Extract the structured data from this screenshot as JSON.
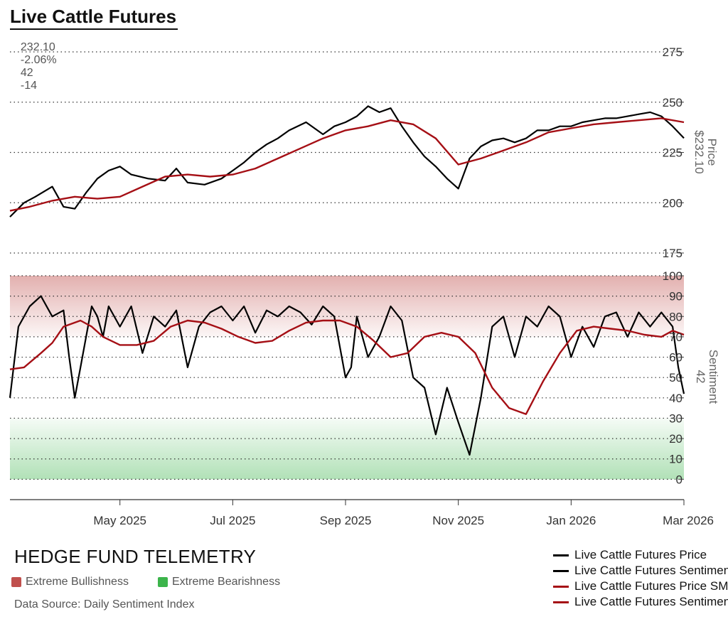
{
  "header": {
    "title": "Live Cattle Futures",
    "stats": [
      "232.10",
      "-2.06%",
      "42",
      "-14"
    ]
  },
  "footer": {
    "brand": "HEDGE FUND TELEMETRY",
    "zones": [
      {
        "label": "Extreme Bullishness",
        "color": "#c0504d"
      },
      {
        "label": "Extreme Bearishness",
        "color": "#3cb44b"
      }
    ],
    "source": "Data Source: Daily Sentiment Index"
  },
  "legend": [
    {
      "label": "Live Cattle Futures Price",
      "color": "#000000"
    },
    {
      "label": "Live Cattle Futures Sentiment",
      "color": "#000000"
    },
    {
      "label": "Live Cattle Futures Price SMA",
      "color": "#a50f15"
    },
    {
      "label": "Live Cattle Futures Sentiment SMA",
      "color": "#a50f15"
    }
  ],
  "chart_data": {
    "type": "line",
    "title": "Live Cattle Futures",
    "x_tick_labels": [
      "May 2025",
      "Jul 2025",
      "Sep 2025",
      "Nov 2025",
      "Jan 2026",
      "Mar 2026"
    ],
    "x_tick_months": [
      1,
      3,
      5,
      7,
      9,
      11
    ],
    "x_range_months": [
      -0.95,
      11.0
    ],
    "panels": [
      {
        "name": "price",
        "ylabel": "Price",
        "value_label": "$232.10",
        "ylim": [
          175,
          275
        ],
        "yticks": [
          175,
          200,
          225,
          250,
          275
        ],
        "series": [
          {
            "name": "Live Cattle Futures Price",
            "color": "#000000",
            "x": [
              -0.95,
              -0.7,
              -0.5,
              -0.2,
              0.0,
              0.2,
              0.4,
              0.6,
              0.8,
              1.0,
              1.2,
              1.5,
              1.8,
              2.0,
              2.2,
              2.5,
              2.8,
              3.0,
              3.2,
              3.4,
              3.6,
              3.8,
              4.0,
              4.3,
              4.6,
              4.8,
              5.0,
              5.2,
              5.4,
              5.6,
              5.8,
              6.0,
              6.2,
              6.4,
              6.6,
              6.8,
              7.0,
              7.2,
              7.4,
              7.6,
              7.8,
              8.0,
              8.2,
              8.4,
              8.6,
              8.8,
              9.0,
              9.2,
              9.4,
              9.6,
              9.8,
              10.0,
              10.2,
              10.4,
              10.6,
              10.8,
              11.0
            ],
            "y": [
              193,
              200,
              203,
              208,
              198,
              197,
              205,
              212,
              216,
              218,
              214,
              212,
              211,
              217,
              210,
              209,
              212,
              216,
              220,
              225,
              229,
              232,
              236,
              240,
              234,
              238,
              240,
              243,
              248,
              245,
              247,
              238,
              230,
              223,
              218,
              212,
              207,
              222,
              228,
              231,
              232,
              230,
              232,
              236,
              236,
              238,
              238,
              240,
              241,
              242,
              242,
              243,
              244,
              245,
              243,
              238,
              232.1
            ]
          },
          {
            "name": "Live Cattle Futures Price SMA",
            "color": "#a50f15",
            "x": [
              -0.95,
              -0.6,
              -0.2,
              0.2,
              0.6,
              1.0,
              1.4,
              1.8,
              2.2,
              2.6,
              3.0,
              3.4,
              3.8,
              4.2,
              4.6,
              5.0,
              5.4,
              5.8,
              6.2,
              6.6,
              7.0,
              7.4,
              7.8,
              8.2,
              8.6,
              9.0,
              9.4,
              9.8,
              10.2,
              10.6,
              11.0
            ],
            "y": [
              196,
              198,
              201,
              203,
              202,
              203,
              208,
              213,
              214,
              213,
              214,
              217,
              222,
              227,
              232,
              236,
              238,
              241,
              239,
              232,
              219,
              222,
              226,
              230,
              235,
              237,
              239,
              240,
              241,
              242,
              240
            ]
          }
        ]
      },
      {
        "name": "sentiment",
        "ylabel": "Sentiment",
        "value_label": "42",
        "ylim": [
          -10,
          100
        ],
        "yticks": [
          0,
          10,
          20,
          30,
          40,
          50,
          60,
          70,
          80,
          90,
          100
        ],
        "bands": [
          {
            "from": 70,
            "to": 100,
            "label": "Extreme Bullishness",
            "color": "#c0504d"
          },
          {
            "from": 0,
            "to": 30,
            "label": "Extreme Bearishness",
            "color": "#3cb44b"
          }
        ],
        "series": [
          {
            "name": "Live Cattle Futures Sentiment",
            "color": "#000000",
            "x": [
              -0.95,
              -0.8,
              -0.6,
              -0.4,
              -0.2,
              0.0,
              0.1,
              0.2,
              0.3,
              0.4,
              0.5,
              0.6,
              0.7,
              0.8,
              1.0,
              1.2,
              1.4,
              1.6,
              1.8,
              2.0,
              2.2,
              2.4,
              2.6,
              2.8,
              3.0,
              3.2,
              3.4,
              3.6,
              3.8,
              4.0,
              4.2,
              4.4,
              4.6,
              4.8,
              5.0,
              5.1,
              5.2,
              5.4,
              5.6,
              5.8,
              6.0,
              6.2,
              6.4,
              6.6,
              6.8,
              7.0,
              7.2,
              7.4,
              7.6,
              7.8,
              8.0,
              8.2,
              8.4,
              8.6,
              8.8,
              9.0,
              9.2,
              9.4,
              9.6,
              9.8,
              10.0,
              10.2,
              10.4,
              10.6,
              10.8,
              10.9,
              11.0
            ],
            "y": [
              40,
              75,
              85,
              90,
              80,
              83,
              60,
              40,
              55,
              70,
              85,
              80,
              70,
              85,
              75,
              85,
              62,
              80,
              75,
              83,
              55,
              75,
              82,
              85,
              78,
              85,
              72,
              83,
              80,
              85,
              82,
              76,
              85,
              80,
              50,
              55,
              80,
              60,
              70,
              85,
              78,
              50,
              45,
              22,
              45,
              28,
              12,
              40,
              75,
              80,
              60,
              80,
              75,
              85,
              80,
              60,
              75,
              65,
              80,
              82,
              70,
              82,
              75,
              82,
              75,
              55,
              42
            ]
          },
          {
            "name": "Live Cattle Futures Sentiment SMA",
            "color": "#a50f15",
            "x": [
              -0.95,
              -0.7,
              -0.4,
              -0.2,
              0.0,
              0.3,
              0.5,
              0.7,
              1.0,
              1.3,
              1.6,
              1.9,
              2.2,
              2.5,
              2.8,
              3.1,
              3.4,
              3.7,
              4.0,
              4.3,
              4.6,
              4.9,
              5.2,
              5.5,
              5.8,
              6.1,
              6.4,
              6.7,
              7.0,
              7.3,
              7.6,
              7.9,
              8.2,
              8.5,
              8.8,
              9.1,
              9.4,
              9.7,
              10.0,
              10.3,
              10.6,
              10.8,
              11.0
            ],
            "y": [
              54,
              55,
              62,
              67,
              75,
              78,
              75,
              70,
              66,
              66,
              68,
              75,
              78,
              77,
              74,
              70,
              67,
              68,
              73,
              77,
              78,
              78,
              75,
              68,
              60,
              62,
              70,
              72,
              70,
              62,
              45,
              35,
              32,
              48,
              62,
              73,
              75,
              74,
              73,
              71,
              70,
              73,
              71
            ]
          }
        ]
      }
    ]
  }
}
